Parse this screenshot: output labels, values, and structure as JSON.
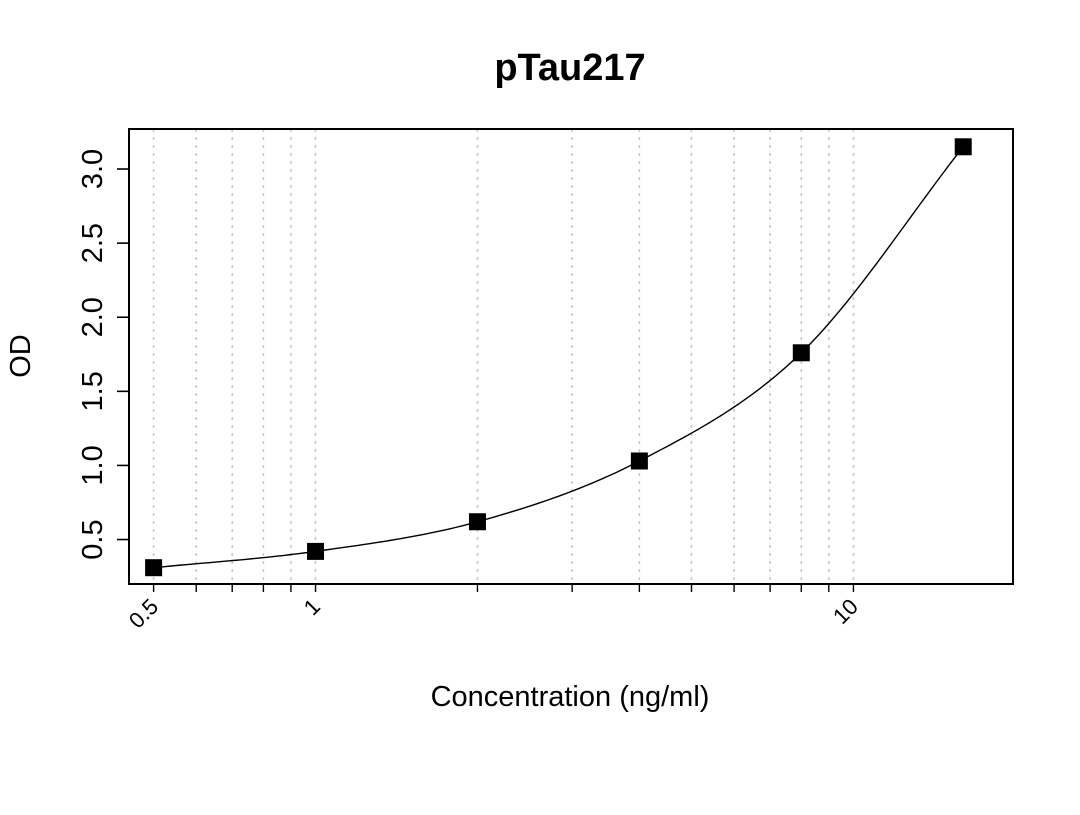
{
  "chart_data": {
    "type": "scatter",
    "title": "pTau217",
    "xlabel": "Concentration (ng/ml)",
    "ylabel": "OD",
    "x_scale": "log",
    "xlim": [
      0.45,
      19.8
    ],
    "ylim": [
      0.2,
      3.27
    ],
    "grid": {
      "vertical": true,
      "horizontal": false,
      "style": "dotted"
    },
    "x_ticks": [
      {
        "value": 0.5,
        "label": "0.5"
      },
      {
        "value": 1,
        "label": "1"
      },
      {
        "value": 10,
        "label": "10"
      }
    ],
    "x_minor_grid": [
      0.5,
      0.6,
      0.7,
      0.8,
      0.9,
      1,
      2,
      3,
      4,
      5,
      6,
      7,
      8,
      9,
      10
    ],
    "y_ticks": [
      {
        "value": 0.5,
        "label": "0.5"
      },
      {
        "value": 1.0,
        "label": "1.0"
      },
      {
        "value": 1.5,
        "label": "1.5"
      },
      {
        "value": 2.0,
        "label": "2.0"
      },
      {
        "value": 2.5,
        "label": "2.5"
      },
      {
        "value": 3.0,
        "label": "3.0"
      }
    ],
    "series": [
      {
        "marker": "square",
        "color": "#000000",
        "x": [
          0.5,
          1,
          2,
          4,
          8,
          16
        ],
        "y": [
          0.31,
          0.42,
          0.62,
          1.03,
          1.76,
          3.15
        ]
      }
    ],
    "fit_curve": {
      "type": "smooth",
      "color": "#000000"
    }
  }
}
